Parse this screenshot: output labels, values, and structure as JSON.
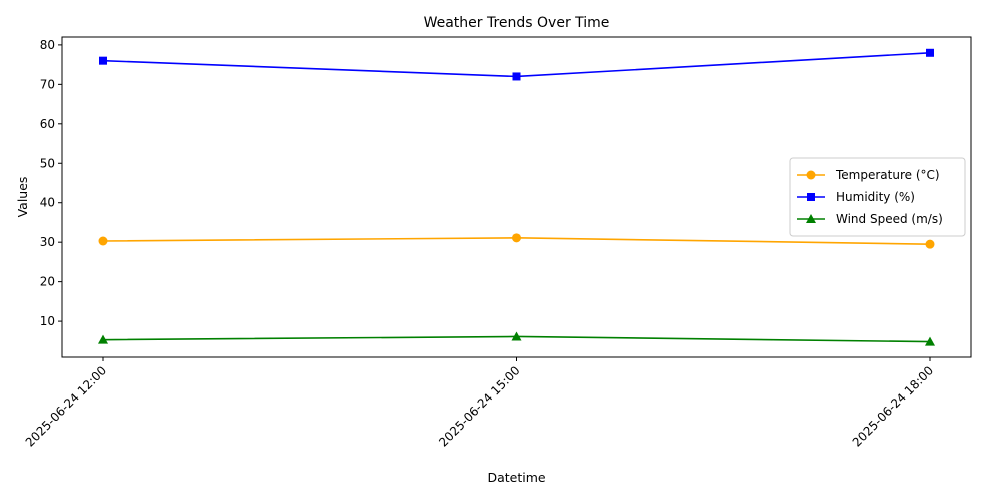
{
  "chart_data": {
    "type": "line",
    "title": "Weather Trends Over Time",
    "xlabel": "Datetime",
    "ylabel": "Values",
    "categories": [
      "2025-06-24 12:00",
      "2025-06-24 15:00",
      "2025-06-24 18:00"
    ],
    "yticks": [
      10,
      20,
      30,
      40,
      50,
      60,
      70,
      80
    ],
    "ylim": [
      0.9,
      82
    ],
    "grid": false,
    "legend_position": "center-right",
    "series": [
      {
        "name": "Temperature (°C)",
        "values": [
          30.3,
          31.1,
          29.5
        ],
        "color": "#FFA500",
        "marker": "circle"
      },
      {
        "name": "Humidity (%)",
        "values": [
          76,
          72,
          78
        ],
        "color": "#0000FF",
        "marker": "square"
      },
      {
        "name": "Wind Speed (m/s)",
        "values": [
          5.3,
          6.1,
          4.8
        ],
        "color": "#008000",
        "marker": "triangle"
      }
    ]
  }
}
